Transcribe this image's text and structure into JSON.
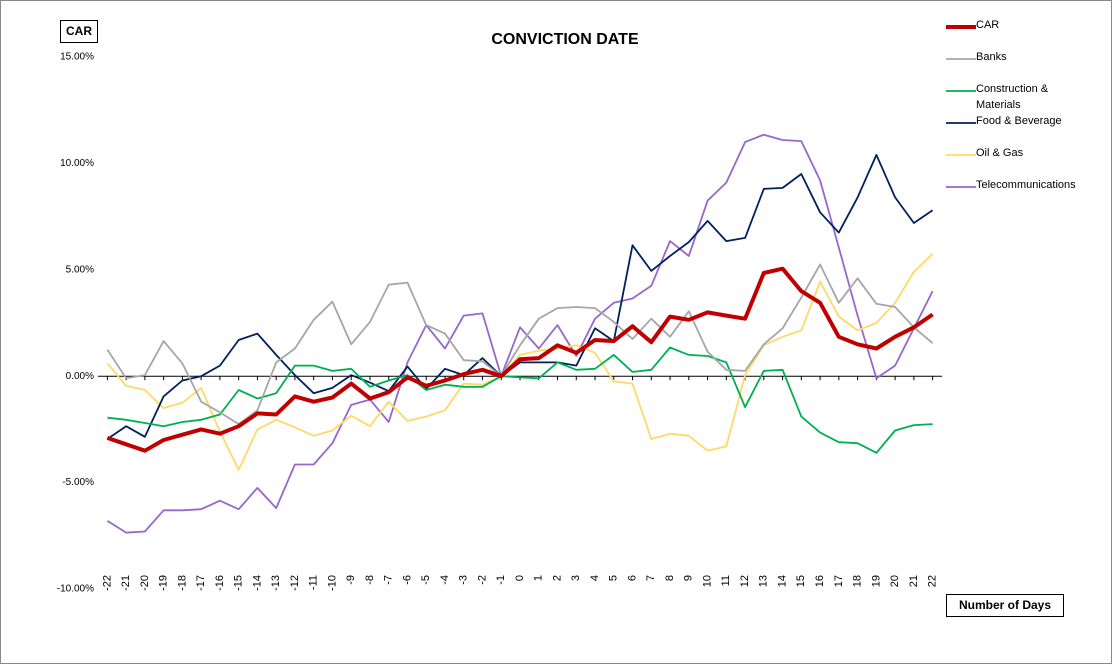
{
  "chart_data": {
    "type": "line",
    "title": "CONVICTION DATE",
    "ylabel": "CAR",
    "xlabel": "Number of Days",
    "x": [
      -22,
      -21,
      -20,
      -19,
      -18,
      -17,
      -16,
      -15,
      -14,
      -13,
      -12,
      -11,
      -10,
      -9,
      -8,
      -7,
      -6,
      -5,
      -4,
      -3,
      -2,
      -1,
      0,
      1,
      2,
      3,
      4,
      5,
      6,
      7,
      8,
      9,
      10,
      11,
      12,
      13,
      14,
      15,
      16,
      17,
      18,
      19,
      20,
      21,
      22
    ],
    "xlim": [
      -22.5,
      22.5
    ],
    "ylim": [
      -10,
      15
    ],
    "yticks": [
      {
        "value": -10,
        "label": "-10.00%"
      },
      {
        "value": -5,
        "label": "-5.00%"
      },
      {
        "value": 0,
        "label": "0.00%"
      },
      {
        "value": 5,
        "label": "5.00%"
      },
      {
        "value": 10,
        "label": "10.00%"
      },
      {
        "value": 15,
        "label": "15.00%"
      }
    ],
    "grid": false,
    "legend": "right",
    "series": [
      {
        "name": "CAR",
        "color": "#c00000",
        "values": [
          -2.9,
          -3.2,
          -3.5,
          -3.0,
          -2.75,
          -2.5,
          -2.7,
          -2.35,
          -1.75,
          -1.8,
          -0.95,
          -1.2,
          -1.0,
          -0.35,
          -1.05,
          -0.75,
          -0.05,
          -0.45,
          -0.2,
          0.1,
          0.3,
          0,
          0.8,
          0.85,
          1.45,
          1.1,
          1.7,
          1.65,
          2.35,
          1.6,
          2.8,
          2.65,
          3.0,
          2.85,
          2.7,
          4.85,
          5.05,
          4.0,
          3.45,
          1.85,
          1.5,
          1.3,
          1.85,
          2.3,
          2.9
        ]
      },
      {
        "name": "Banks",
        "color": "#a6a6a6",
        "values": [
          1.25,
          -0.1,
          0.05,
          1.65,
          0.6,
          -1.2,
          -1.7,
          -2.25,
          -1.6,
          0.65,
          1.3,
          2.65,
          3.5,
          1.5,
          2.55,
          4.3,
          4.4,
          2.4,
          2.0,
          0.75,
          0.7,
          0,
          1.45,
          2.7,
          3.2,
          3.25,
          3.2,
          2.55,
          1.75,
          2.7,
          1.85,
          3.05,
          1.15,
          0.3,
          0.25,
          1.5,
          2.25,
          3.7,
          5.25,
          3.45,
          4.6,
          3.4,
          3.25,
          2.3,
          1.55
        ]
      },
      {
        "name": "Construction & Materials",
        "color": "#00b050",
        "values": [
          -1.95,
          -2.05,
          -2.2,
          -2.35,
          -2.15,
          -2.05,
          -1.8,
          -0.65,
          -1.05,
          -0.8,
          0.5,
          0.5,
          0.25,
          0.35,
          -0.5,
          -0.2,
          0.05,
          -0.65,
          -0.4,
          -0.5,
          -0.5,
          0,
          -0.05,
          -0.1,
          0.65,
          0.3,
          0.35,
          1.0,
          0.2,
          0.3,
          1.35,
          1.0,
          0.95,
          0.65,
          -1.45,
          0.25,
          0.3,
          -1.9,
          -2.65,
          -3.1,
          -3.15,
          -3.6,
          -2.55,
          -2.3,
          -2.25
        ]
      },
      {
        "name": "Food & Beverage",
        "color": "#002060",
        "values": [
          -2.95,
          -2.35,
          -2.85,
          -0.95,
          -0.2,
          0,
          0.5,
          1.7,
          2.0,
          1.0,
          0.05,
          -0.8,
          -0.55,
          0.05,
          -0.3,
          -0.7,
          0.45,
          -0.6,
          0.35,
          0.05,
          0.85,
          0,
          0.65,
          0.65,
          0.65,
          0.5,
          2.25,
          1.65,
          6.15,
          4.95,
          5.65,
          6.3,
          7.3,
          6.35,
          6.5,
          8.8,
          8.85,
          9.5,
          7.7,
          6.75,
          8.4,
          10.4,
          8.4,
          7.2,
          7.8
        ]
      },
      {
        "name": "Oil & Gas",
        "color": "#ffd966",
        "values": [
          0.6,
          -0.45,
          -0.65,
          -1.5,
          -1.25,
          -0.55,
          -2.6,
          -4.4,
          -2.5,
          -2.05,
          -2.4,
          -2.8,
          -2.55,
          -1.85,
          -2.35,
          -1.2,
          -2.1,
          -1.9,
          -1.6,
          -0.35,
          -0.4,
          0,
          1.0,
          1.2,
          1.3,
          1.45,
          1.1,
          -0.25,
          -0.35,
          -2.95,
          -2.7,
          -2.8,
          -3.5,
          -3.3,
          0.05,
          1.45,
          1.85,
          2.15,
          4.45,
          2.8,
          2.15,
          2.5,
          3.45,
          4.9,
          5.75
        ]
      },
      {
        "name": "Telecommunications",
        "color": "#9966cc",
        "values": [
          -6.8,
          -7.35,
          -7.3,
          -6.3,
          -6.3,
          -6.25,
          -5.85,
          -6.25,
          -5.25,
          -6.2,
          -4.15,
          -4.15,
          -3.15,
          -1.35,
          -1.1,
          -2.15,
          0.65,
          2.4,
          1.3,
          2.85,
          2.95,
          0,
          2.3,
          1.3,
          2.4,
          0.95,
          2.7,
          3.45,
          3.65,
          4.25,
          6.35,
          5.65,
          8.25,
          9.1,
          11.0,
          11.35,
          11.1,
          11.05,
          9.2,
          6.05,
          2.85,
          -0.1,
          0.5,
          2.25,
          4.0
        ]
      }
    ]
  }
}
